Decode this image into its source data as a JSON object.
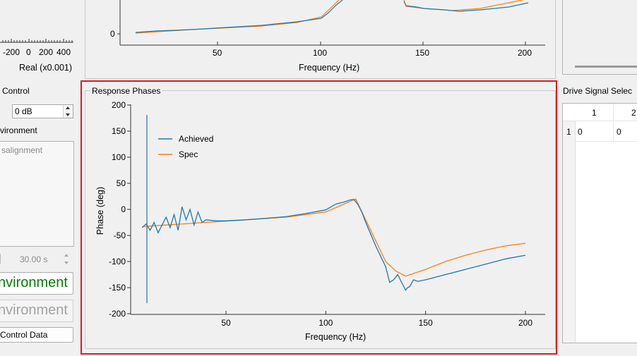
{
  "top_left_axis": {
    "ticks": [
      "-200",
      "0",
      "200",
      "400"
    ],
    "label": "Real (x0.001)"
  },
  "magnitude_plot": {
    "y_ticks": [
      "0"
    ],
    "x_ticks": [
      "50",
      "100",
      "150",
      "200"
    ],
    "xlabel": "Frequency (Hz)"
  },
  "left_panel": {
    "control_group_title": "Control",
    "attenuation_value": "0 dB",
    "environment_group_title": "vironment",
    "environment_list_item": "salignment",
    "duration_value": "30.00 s",
    "start_env_button": "nvironment",
    "stop_env_button": "nvironment",
    "save_control_data_button": "Control Data"
  },
  "response_phases": {
    "group_title": "Response Phases",
    "legend": {
      "achieved": "Achieved",
      "spec": "Spec"
    },
    "colors": {
      "achieved": "#1f77b4",
      "spec": "#ff7f0e"
    },
    "y_ticks": [
      "200",
      "150",
      "100",
      "50",
      "0",
      "-50",
      "-100",
      "-150",
      "-200"
    ],
    "x_ticks": [
      "50",
      "100",
      "150",
      "200"
    ]
  },
  "drive_signal": {
    "group_title": "Drive Signal Selec",
    "col_headers": [
      "1",
      "2"
    ],
    "row_header": "1",
    "cells": [
      "0",
      "0"
    ]
  },
  "chart_data": {
    "type": "line",
    "title": "Response Phases",
    "xlabel": "Frequency (Hz)",
    "ylabel": "Phase (deg)",
    "xlim": [
      1,
      210
    ],
    "ylim": [
      -200,
      200
    ],
    "legend_position": "top-left",
    "series": [
      {
        "name": "Achieved",
        "color": "#1f77b4",
        "x": [
          8,
          10,
          12,
          14,
          16,
          18,
          20,
          22,
          24,
          26,
          28,
          30,
          32,
          34,
          36,
          38,
          40,
          45,
          50,
          60,
          70,
          80,
          90,
          100,
          105,
          110,
          112,
          114,
          116,
          118,
          120,
          125,
          130,
          132,
          134,
          136,
          138,
          140,
          141,
          142,
          144,
          146,
          150,
          160,
          170,
          180,
          190,
          200
        ],
        "y": [
          -35,
          -28,
          -40,
          -25,
          -45,
          -30,
          -15,
          -35,
          -10,
          -40,
          5,
          -20,
          0,
          -30,
          -5,
          -25,
          -20,
          -22,
          -22,
          -20,
          -17,
          -14,
          -8,
          -1,
          10,
          15,
          18,
          19,
          10,
          -5,
          -25,
          -70,
          -110,
          -140,
          -135,
          -125,
          -140,
          -155,
          -150,
          -148,
          -135,
          -138,
          -135,
          -125,
          -115,
          -105,
          -95,
          -88
        ]
      },
      {
        "name": "Spec",
        "color": "#ff7f0e",
        "x": [
          8,
          20,
          40,
          60,
          80,
          100,
          115,
          125,
          130,
          135,
          140,
          150,
          160,
          170,
          180,
          190,
          200
        ],
        "y": [
          -33,
          -30,
          -25,
          -20,
          -15,
          -5,
          20,
          -60,
          -100,
          -118,
          -128,
          -115,
          -100,
          -88,
          -78,
          -70,
          -65
        ]
      }
    ]
  }
}
